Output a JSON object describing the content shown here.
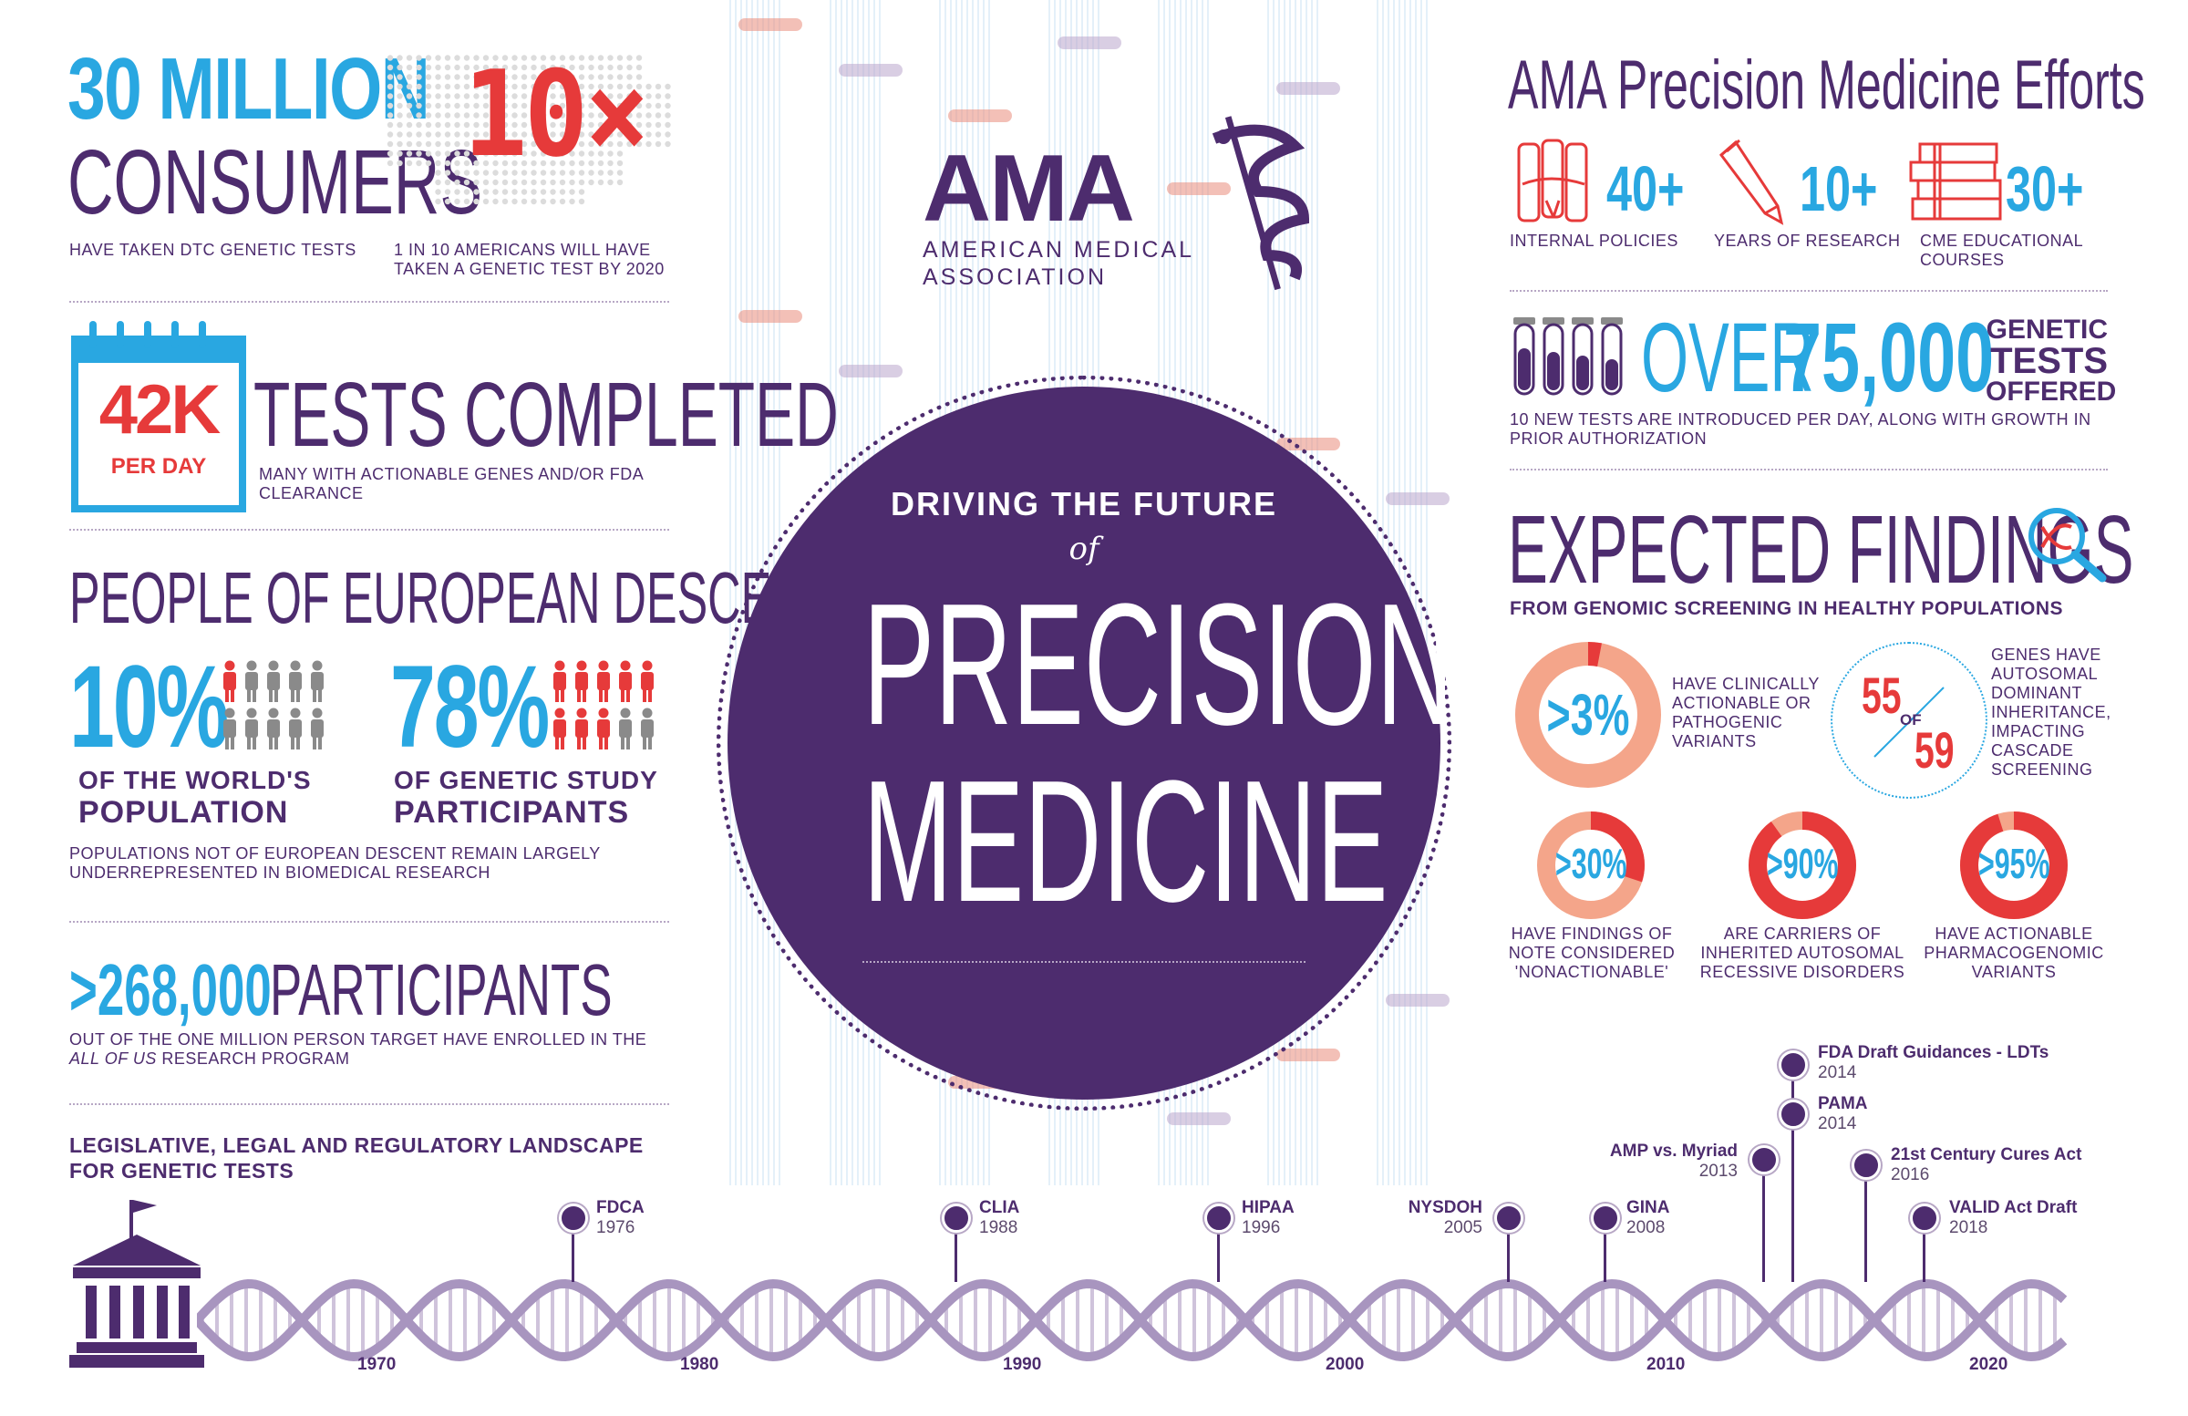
{
  "left": {
    "consumers_big": "30 MILLION",
    "consumers_word": "CONSUMERS",
    "consumers_sub": "HAVE TAKEN DTC GENETIC TESTS",
    "ten_x": "10×",
    "ten_x_sub": "1 IN 10 AMERICANS WILL HAVE TAKEN A GENETIC TEST BY 2020",
    "calendar_value": "42K",
    "calendar_unit": "PER DAY",
    "tests_title": "TESTS COMPLETED",
    "tests_sub": "MANY WITH ACTIONABLE GENES AND/OR FDA CLEARANCE",
    "euro_title": "PEOPLE OF EUROPEAN DESCENT",
    "pct_world": "10%",
    "pct_world_label1": "OF THE WORLD'S",
    "pct_world_label2": "POPULATION",
    "pct_study": "78%",
    "pct_study_label1": "OF GENETIC STUDY",
    "pct_study_label2": "PARTICIPANTS",
    "euro_note": "POPULATIONS NOT OF EUROPEAN DESCENT REMAIN LARGELY UNDERREPRESENTED IN BIOMEDICAL RESEARCH",
    "participants_num": ">268,000",
    "participants_word": "PARTICIPANTS",
    "participants_sub1": "OUT OF THE ONE MILLION PERSON TARGET HAVE ENROLLED IN THE",
    "participants_sub2_italic": "ALL OF US",
    "participants_sub2_rest": "RESEARCH PROGRAM"
  },
  "center": {
    "logo": "AMA",
    "org_line1": "AMERICAN MEDICAL",
    "org_line2": "ASSOCIATION",
    "driving": "DRIVING THE FUTURE",
    "of": "of",
    "title1": "PRECISION",
    "title2": "MEDICINE"
  },
  "right": {
    "efforts_title": "AMA Precision Medicine Efforts",
    "efforts": [
      {
        "value": "40+",
        "label": "INTERNAL POLICIES",
        "icon": "scrolls-icon"
      },
      {
        "value": "10+",
        "label": "YEARS OF RESEARCH",
        "icon": "pencil-icon"
      },
      {
        "value": "30+",
        "label": "CME EDUCATIONAL COURSES",
        "icon": "books-icon"
      }
    ],
    "over": "OVER",
    "tests_num": "75,000",
    "genetic": "GENETIC",
    "tests": "TESTS",
    "offered": "OFFERED",
    "tests_note": "10 NEW TESTS ARE INTRODUCED PER DAY, ALONG WITH GROWTH IN PRIOR AUTHORIZATION",
    "findings_title": "EXPECTED FINDINGS",
    "findings_sub": "FROM GENOMIC SCREENING IN HEALTHY POPULATIONS",
    "f1_value": ">3%",
    "f1_fraction": 0.03,
    "f1_label": "HAVE CLINICALLY ACTIONABLE OR PATHOGENIC VARIANTS",
    "f2_num": "55",
    "f2_of": "OF",
    "f2_den": "59",
    "f2_label": "GENES HAVE AUTOSOMAL DOMINANT INHERITANCE, IMPACTING CASCADE SCREENING",
    "small_rings": [
      {
        "value": ">30%",
        "fraction": 0.3,
        "label": "HAVE FINDINGS OF NOTE CONSIDERED 'NONACTIONABLE'"
      },
      {
        "value": ">90%",
        "fraction": 0.9,
        "label": "ARE CARRIERS OF INHERITED AUTOSOMAL RECESSIVE DISORDERS"
      },
      {
        "value": ">95%",
        "fraction": 0.95,
        "label": "HAVE ACTIONABLE PHARMACOGENOMIC VARIANTS"
      }
    ]
  },
  "timeline": {
    "title1": "LEGISLATIVE, LEGAL AND REGULATORY LANDSCAPE",
    "title2": "FOR GENETIC TESTS",
    "decades": [
      "1970",
      "1980",
      "1990",
      "2000",
      "2010",
      "2020"
    ],
    "events": [
      {
        "name": "FDCA",
        "year": "1976"
      },
      {
        "name": "CLIA",
        "year": "1988"
      },
      {
        "name": "HIPAA",
        "year": "1996"
      },
      {
        "name": "NYSDOH",
        "year": "2005"
      },
      {
        "name": "GINA",
        "year": "2008"
      },
      {
        "name": "AMP vs. Myriad",
        "year": "2013"
      },
      {
        "name": "FDA Draft Guidances - LDTs",
        "year": "2014"
      },
      {
        "name": "PAMA",
        "year": "2014"
      },
      {
        "name": "21st Century Cures Act",
        "year": "2016"
      },
      {
        "name": "VALID Act Draft",
        "year": "2018"
      }
    ]
  },
  "colors": {
    "purple": "#4d2c6e",
    "blue": "#29a7e1",
    "red": "#e63a3a",
    "salmon": "#f4a58a",
    "lavender": "#b7a7c5"
  }
}
